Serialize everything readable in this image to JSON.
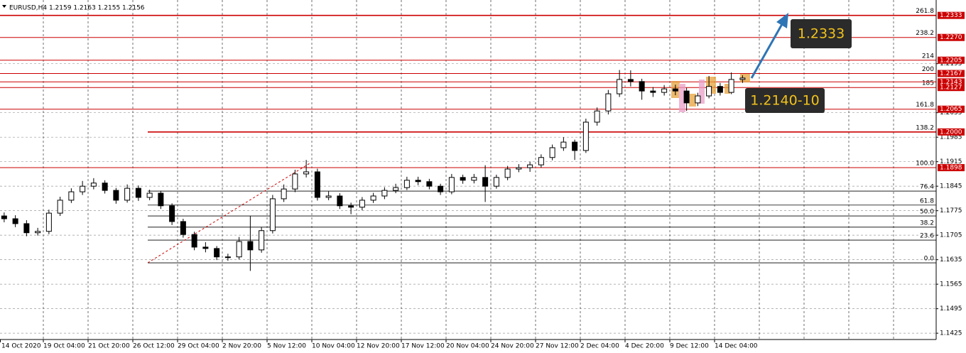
{
  "chart_data": {
    "type": "candlestick",
    "header": "EURUSD,H4  1.2159 1.2163 1.2155 1.2156",
    "annotations": [
      "1.2333",
      "1.2140-10"
    ],
    "xtick_labels": [
      "14 Oct 2020",
      "19 Oct 04:00",
      "21 Oct 20:00",
      "26 Oct 12:00",
      "29 Oct 04:00",
      "2 Nov 20:00",
      "5 Nov 12:00",
      "10 Nov 04:00",
      "12 Nov 20:00",
      "17 Nov 12:00",
      "20 Nov 04:00",
      "24 Nov 20:00",
      "27 Nov 12:00",
      "2 Dec 04:00",
      "4 Dec 20:00",
      "9 Dec 12:00",
      "14 Dec 04:00"
    ],
    "ylim": [
      1.1407,
      1.2377
    ],
    "yticks": [
      1.1425,
      1.1495,
      1.1565,
      1.1635,
      1.1705,
      1.1775,
      1.1845,
      1.1915,
      1.1985,
      1.2055,
      1.2195
    ],
    "grid": true,
    "up_color": "#ffffff",
    "down_color": "#000000",
    "level_color": "#cc0000",
    "levels": [
      1.2333,
      {
        "value": 1.227,
        "label": "1.2270"
      },
      1.2205,
      1.2167,
      1.2143,
      1.2127,
      1.2065,
      {
        "value": 1.2,
        "label": "1.2000"
      },
      1.1898
    ],
    "fib_levels": [
      {
        "price": 1.1626,
        "label": "0.0"
      },
      {
        "price": 1.1691,
        "label": "23.6"
      },
      {
        "price": 1.1728,
        "label": "38.2"
      },
      {
        "price": 1.176,
        "label": "50.0"
      },
      {
        "price": 1.1791,
        "label": "61.8"
      },
      {
        "price": 1.1831,
        "label": "76.4"
      },
      {
        "price": 1.1898,
        "label": "100.0"
      },
      {
        "price": 1.2,
        "label": "138.2"
      },
      {
        "price": 1.2065,
        "label": "161.8"
      },
      {
        "price": 1.2127,
        "label": "185"
      },
      {
        "price": 1.2167,
        "label": "200"
      },
      {
        "price": 1.2205,
        "label": "214"
      },
      {
        "price": 1.227,
        "label": "238.2"
      },
      {
        "price": 1.2333,
        "label": "261.8"
      }
    ],
    "candles": {
      "open": [
        1.176,
        1.1752,
        1.1738,
        1.1712,
        1.1716,
        1.1768,
        1.1805,
        1.1829,
        1.1845,
        1.1854,
        1.1833,
        1.1805,
        1.1839,
        1.1813,
        1.1825,
        1.1789,
        1.1744,
        1.1707,
        1.1671,
        1.1667,
        1.1643,
        1.1643,
        1.1687,
        1.1663,
        1.1718,
        1.1809,
        1.1837,
        1.188,
        1.1886,
        1.1813,
        1.1817,
        1.1789,
        1.1785,
        1.1805,
        1.1817,
        1.1833,
        1.1841,
        1.1862,
        1.1858,
        1.1845,
        1.1829,
        1.187,
        1.1862,
        1.187,
        1.1845,
        1.187,
        1.1894,
        1.1898,
        1.1906,
        1.1927,
        1.1955,
        1.1971,
        1.1947,
        1.2028,
        1.206,
        1.2109,
        1.215,
        1.2144,
        1.2117,
        1.2113,
        1.2123,
        1.2117,
        1.2083,
        1.2103,
        1.213,
        1.2113,
        1.215
      ],
      "high": [
        1.177,
        1.1762,
        1.1748,
        1.1726,
        1.1778,
        1.1815,
        1.1839,
        1.186,
        1.1868,
        1.1862,
        1.184,
        1.185,
        1.1847,
        1.1835,
        1.1832,
        1.1796,
        1.1752,
        1.1715,
        1.1685,
        1.1674,
        1.1652,
        1.17,
        1.176,
        1.1728,
        1.182,
        1.185,
        1.1892,
        1.192,
        1.1895,
        1.183,
        1.1825,
        1.1798,
        1.1814,
        1.1826,
        1.1842,
        1.1852,
        1.1872,
        1.1872,
        1.1866,
        1.1852,
        1.188,
        1.1878,
        1.188,
        1.1905,
        1.1878,
        1.1903,
        1.1908,
        1.1915,
        1.1936,
        1.1964,
        1.1985,
        1.1978,
        1.2038,
        1.207,
        1.212,
        1.2177,
        1.2176,
        1.2152,
        1.2128,
        1.2134,
        1.2135,
        1.2126,
        1.2112,
        1.216,
        1.214,
        1.217,
        1.2162
      ],
      "low": [
        1.1742,
        1.1728,
        1.1702,
        1.1704,
        1.1708,
        1.176,
        1.1797,
        1.182,
        1.1836,
        1.1824,
        1.1795,
        1.1798,
        1.1803,
        1.1805,
        1.178,
        1.1734,
        1.1698,
        1.1662,
        1.1656,
        1.1634,
        1.1632,
        1.1636,
        1.1603,
        1.1655,
        1.171,
        1.18,
        1.1828,
        1.187,
        1.1804,
        1.1805,
        1.178,
        1.1765,
        1.1776,
        1.1797,
        1.1808,
        1.1825,
        1.1834,
        1.1848,
        1.1836,
        1.182,
        1.1822,
        1.1852,
        1.1853,
        1.18,
        1.1838,
        1.1862,
        1.1885,
        1.1886,
        1.1898,
        1.1919,
        1.1946,
        1.192,
        1.194,
        1.2018,
        1.205,
        1.21,
        1.213,
        1.2092,
        1.21,
        1.2104,
        1.2105,
        1.206,
        1.2074,
        1.2096,
        1.2104,
        1.2108,
        1.214
      ],
      "close": [
        1.1752,
        1.1738,
        1.1712,
        1.1716,
        1.1768,
        1.1805,
        1.1829,
        1.1845,
        1.1854,
        1.1833,
        1.1805,
        1.1839,
        1.1813,
        1.1825,
        1.1789,
        1.1744,
        1.1707,
        1.1671,
        1.1667,
        1.1643,
        1.1643,
        1.1687,
        1.1663,
        1.1718,
        1.1809,
        1.1837,
        1.188,
        1.1886,
        1.1813,
        1.1817,
        1.1789,
        1.1785,
        1.1805,
        1.1817,
        1.1833,
        1.1841,
        1.1862,
        1.1858,
        1.1845,
        1.1829,
        1.187,
        1.1862,
        1.187,
        1.1845,
        1.187,
        1.1894,
        1.1898,
        1.1906,
        1.1927,
        1.1955,
        1.1971,
        1.1947,
        1.2028,
        1.206,
        1.2109,
        1.215,
        1.2144,
        1.2117,
        1.2113,
        1.2123,
        1.2117,
        1.2083,
        1.2103,
        1.213,
        1.2113,
        1.215,
        1.2154
      ]
    }
  }
}
